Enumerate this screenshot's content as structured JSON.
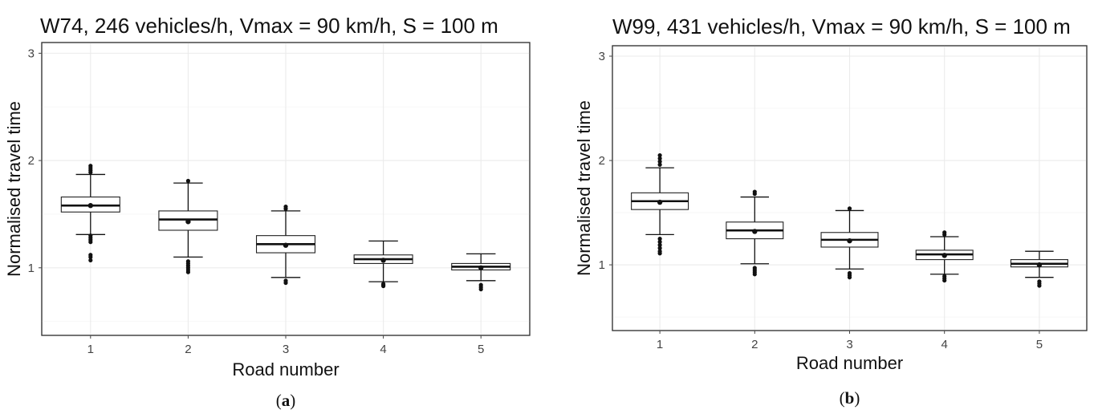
{
  "chart_data": [
    {
      "type": "box",
      "title": "W74, 246 vehicles/h, Vmax = 90 km/h, S = 100 m",
      "xlabel": "Road number",
      "ylabel": "Normalised travel time",
      "caption": "a",
      "categories": [
        "1",
        "2",
        "3",
        "4",
        "5"
      ],
      "yticks": [
        "1",
        "2",
        "3"
      ],
      "ylim": [
        0.37,
        3.1
      ],
      "grid": true,
      "boxes": [
        {
          "category": "1",
          "whisker_low": 1.31,
          "q1": 1.52,
          "median": 1.58,
          "q3": 1.66,
          "whisker_high": 1.87,
          "mean": 1.58,
          "outliers": [
            1.07,
            1.1,
            1.12,
            1.24,
            1.26,
            1.28,
            1.3,
            1.89,
            1.91,
            1.93,
            1.95
          ]
        },
        {
          "category": "2",
          "whisker_low": 1.1,
          "q1": 1.35,
          "median": 1.45,
          "q3": 1.53,
          "whisker_high": 1.79,
          "mean": 1.43,
          "outliers": [
            0.96,
            0.98,
            1.0,
            1.02,
            1.04,
            1.06,
            1.81
          ]
        },
        {
          "category": "3",
          "whisker_low": 0.91,
          "q1": 1.14,
          "median": 1.22,
          "q3": 1.3,
          "whisker_high": 1.53,
          "mean": 1.21,
          "outliers": [
            0.86,
            0.88,
            1.55,
            1.57
          ]
        },
        {
          "category": "4",
          "whisker_low": 0.87,
          "q1": 1.04,
          "median": 1.08,
          "q3": 1.12,
          "whisker_high": 1.25,
          "mean": 1.07,
          "outliers": [
            0.83,
            0.84,
            0.85
          ]
        },
        {
          "category": "5",
          "whisker_low": 0.88,
          "q1": 0.98,
          "median": 1.01,
          "q3": 1.04,
          "whisker_high": 1.13,
          "mean": 1.0,
          "outliers": [
            0.8,
            0.82,
            0.84
          ]
        }
      ]
    },
    {
      "type": "box",
      "title": "W99, 431 vehicles/h, Vmax = 90 km/h, S = 100 m",
      "xlabel": "Road number",
      "ylabel": "Normalised travel time",
      "caption": "b",
      "categories": [
        "1",
        "2",
        "3",
        "4",
        "5"
      ],
      "yticks": [
        "1",
        "2",
        "3"
      ],
      "ylim": [
        0.37,
        3.1
      ],
      "grid": true,
      "boxes": [
        {
          "category": "1",
          "whisker_low": 1.29,
          "q1": 1.53,
          "median": 1.61,
          "q3": 1.69,
          "whisker_high": 1.93,
          "mean": 1.6,
          "outliers": [
            1.11,
            1.13,
            1.16,
            1.19,
            1.22,
            1.25,
            1.96,
            1.99,
            2.02,
            2.05
          ]
        },
        {
          "category": "2",
          "whisker_low": 1.01,
          "q1": 1.25,
          "median": 1.33,
          "q3": 1.41,
          "whisker_high": 1.65,
          "mean": 1.32,
          "outliers": [
            0.91,
            0.93,
            0.95,
            0.97,
            1.68,
            1.7
          ]
        },
        {
          "category": "3",
          "whisker_low": 0.96,
          "q1": 1.17,
          "median": 1.24,
          "q3": 1.31,
          "whisker_high": 1.52,
          "mean": 1.23,
          "outliers": [
            0.88,
            0.9,
            0.92,
            1.54
          ]
        },
        {
          "category": "4",
          "whisker_low": 0.91,
          "q1": 1.05,
          "median": 1.1,
          "q3": 1.14,
          "whisker_high": 1.27,
          "mean": 1.09,
          "outliers": [
            0.85,
            0.87,
            0.89,
            1.29,
            1.31
          ]
        },
        {
          "category": "5",
          "whisker_low": 0.88,
          "q1": 0.98,
          "median": 1.01,
          "q3": 1.05,
          "whisker_high": 1.13,
          "mean": 1.0,
          "outliers": [
            0.8,
            0.82,
            0.84
          ]
        }
      ]
    }
  ]
}
